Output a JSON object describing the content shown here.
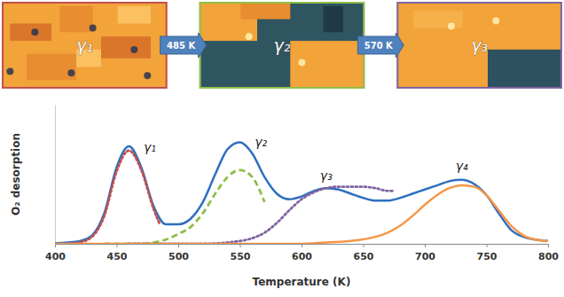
{
  "chart_data": {
    "type": "line",
    "xlabel": "Temperature (K)",
    "ylabel": "O₂ desorption",
    "xlim": [
      400,
      800
    ],
    "ylim": [
      0,
      100
    ],
    "xticks": [
      400,
      450,
      500,
      550,
      600,
      650,
      700,
      750,
      800
    ],
    "tick_labels": "x",
    "grid": false,
    "series": [
      {
        "color": "#2e6fbf",
        "line_style": "solid",
        "x": [
          400,
          410,
          420,
          430,
          440,
          450,
          460,
          470,
          480,
          490,
          500,
          510,
          520,
          530,
          540,
          550,
          560,
          570,
          580,
          590,
          600,
          610,
          620,
          630,
          640,
          650,
          660,
          670,
          680,
          690,
          700,
          710,
          720,
          730,
          740,
          750,
          760,
          770,
          780,
          790,
          800
        ],
        "values": [
          0.5,
          1,
          2,
          6,
          22,
          55,
          70,
          55,
          27,
          14,
          14,
          18,
          30,
          50,
          68,
          73,
          65,
          48,
          36,
          32,
          34,
          38,
          40,
          39,
          36,
          33,
          31,
          31,
          33,
          36,
          39,
          42,
          45,
          46,
          43,
          35,
          22,
          10,
          5,
          3,
          2
        ]
      },
      {
        "color": "#c0504d",
        "line_style": "dotted",
        "x": [
          410,
          420,
          430,
          440,
          450,
          460,
          470,
          480,
          485
        ],
        "values": [
          0,
          1,
          5,
          20,
          52,
          67,
          53,
          25,
          14
        ]
      },
      {
        "color": "#8fbf4a",
        "line_style": "dashed",
        "x": [
          440,
          450,
          460,
          470,
          480,
          490,
          500,
          510,
          520,
          530,
          540,
          550,
          560,
          570
        ],
        "values": [
          0,
          0,
          0,
          0,
          1,
          3,
          7,
          12,
          22,
          36,
          48,
          53,
          48,
          30
        ]
      },
      {
        "color": "#8064a2",
        "line_style": "dotted",
        "x": [
          460,
          480,
          500,
          520,
          540,
          560,
          570,
          580,
          590,
          600,
          610,
          620,
          630,
          640,
          650,
          660,
          670,
          675
        ],
        "values": [
          0,
          0,
          0,
          0,
          1,
          4,
          8,
          15,
          24,
          32,
          37,
          40,
          41,
          41,
          41,
          40,
          38,
          38
        ]
      },
      {
        "color": "#f79646",
        "line_style": "solid",
        "x": [
          400,
          450,
          500,
          550,
          600,
          620,
          640,
          660,
          670,
          680,
          690,
          700,
          710,
          720,
          730,
          740,
          750,
          760,
          770,
          780,
          790,
          800
        ],
        "values": [
          0,
          0,
          0,
          0,
          0,
          1,
          2,
          5,
          8,
          13,
          20,
          28,
          35,
          40,
          42,
          41,
          35,
          24,
          13,
          6,
          3,
          2
        ]
      }
    ],
    "annotations": [
      {
        "text": "γ₁",
        "x": 472,
        "y": 66
      },
      {
        "text": "γ₂",
        "x": 562,
        "y": 70
      },
      {
        "text": "γ₃",
        "x": 615,
        "y": 46
      },
      {
        "text": "γ₄",
        "x": 725,
        "y": 53
      }
    ]
  },
  "stm_images": [
    {
      "label": "γ₁",
      "color": "#c0504d"
    },
    {
      "label": "γ₂",
      "color": "#8fbf4a"
    },
    {
      "label": "γ₃",
      "color": "#8064a2"
    }
  ],
  "transitions": [
    "485 K",
    "570 K"
  ]
}
